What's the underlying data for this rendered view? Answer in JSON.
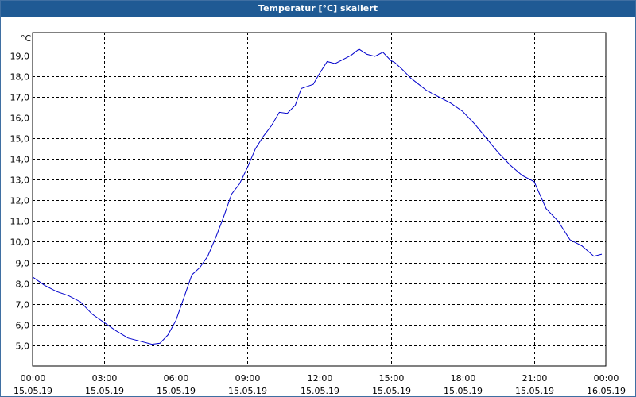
{
  "window": {
    "title": "Temperatur [°C] skaliert"
  },
  "chart_data": {
    "type": "line",
    "title": "Temperatur [°C] skaliert",
    "unit_label": "°C",
    "xlabel": "",
    "ylabel": "",
    "ylim": [
      4.0,
      20.1
    ],
    "xlim": [
      "2019-05-15T00:00",
      "2019-05-16T00:00"
    ],
    "yticks": [
      5,
      6,
      7,
      8,
      9,
      10,
      11,
      12,
      13,
      14,
      15,
      16,
      17,
      18,
      19
    ],
    "ytick_labels": [
      "5,0",
      "6,0",
      "7,0",
      "8,0",
      "9,0",
      "10,0",
      "11,0",
      "12,0",
      "13,0",
      "14,0",
      "15,0",
      "16,0",
      "17,0",
      "18,0",
      "19,0"
    ],
    "xticks": [
      {
        "time": "00:00",
        "date": "15.05.19",
        "x": "2019-05-15T00:00"
      },
      {
        "time": "03:00",
        "date": "15.05.19",
        "x": "2019-05-15T03:00"
      },
      {
        "time": "06:00",
        "date": "15.05.19",
        "x": "2019-05-15T06:00"
      },
      {
        "time": "09:00",
        "date": "15.05.19",
        "x": "2019-05-15T09:00"
      },
      {
        "time": "12:00",
        "date": "15.05.19",
        "x": "2019-05-15T12:00"
      },
      {
        "time": "15:00",
        "date": "15.05.19",
        "x": "2019-05-15T15:00"
      },
      {
        "time": "18:00",
        "date": "15.05.19",
        "x": "2019-05-15T18:00"
      },
      {
        "time": "21:00",
        "date": "15.05.19",
        "x": "2019-05-15T21:00"
      },
      {
        "time": "00:00",
        "date": "16.05.19",
        "x": "2019-05-16T00:00"
      }
    ],
    "grid": true,
    "series": [
      {
        "color": "#0000cc",
        "x": [
          "2019-05-15T00:00",
          "2019-05-15T00:30",
          "2019-05-15T01:00",
          "2019-05-15T01:30",
          "2019-05-15T02:00",
          "2019-05-15T02:30",
          "2019-05-15T03:00",
          "2019-05-15T03:30",
          "2019-05-15T04:00",
          "2019-05-15T04:30",
          "2019-05-15T05:00",
          "2019-05-15T05:20",
          "2019-05-15T05:40",
          "2019-05-15T06:00",
          "2019-05-15T06:20",
          "2019-05-15T06:40",
          "2019-05-15T07:00",
          "2019-05-15T07:20",
          "2019-05-15T07:40",
          "2019-05-15T08:00",
          "2019-05-15T08:20",
          "2019-05-15T08:40",
          "2019-05-15T09:00",
          "2019-05-15T09:20",
          "2019-05-15T09:40",
          "2019-05-15T10:00",
          "2019-05-15T10:20",
          "2019-05-15T10:40",
          "2019-05-15T11:00",
          "2019-05-15T11:15",
          "2019-05-15T11:30",
          "2019-05-15T11:45",
          "2019-05-15T12:00",
          "2019-05-15T12:20",
          "2019-05-15T12:40",
          "2019-05-15T13:00",
          "2019-05-15T13:20",
          "2019-05-15T13:40",
          "2019-05-15T14:00",
          "2019-05-15T14:20",
          "2019-05-15T14:40",
          "2019-05-15T15:00",
          "2019-05-15T15:10",
          "2019-05-15T15:30",
          "2019-05-15T15:50",
          "2019-05-15T16:10",
          "2019-05-15T16:30",
          "2019-05-15T17:00",
          "2019-05-15T17:30",
          "2019-05-15T18:00",
          "2019-05-15T18:30",
          "2019-05-15T19:00",
          "2019-05-15T19:30",
          "2019-05-15T20:00",
          "2019-05-15T20:30",
          "2019-05-15T21:00",
          "2019-05-15T21:30",
          "2019-05-15T22:00",
          "2019-05-15T22:30",
          "2019-05-15T23:00",
          "2019-05-15T23:30",
          "2019-05-15T23:50"
        ],
        "values": [
          8.3,
          7.9,
          7.6,
          7.4,
          7.1,
          6.5,
          6.1,
          5.7,
          5.35,
          5.2,
          5.05,
          5.1,
          5.5,
          6.2,
          7.3,
          8.4,
          8.75,
          9.3,
          10.2,
          11.2,
          12.3,
          12.8,
          13.6,
          14.5,
          15.1,
          15.6,
          16.25,
          16.2,
          16.6,
          17.4,
          17.5,
          17.6,
          18.1,
          18.7,
          18.6,
          18.8,
          19.0,
          19.3,
          19.05,
          18.95,
          19.15,
          18.75,
          18.65,
          18.3,
          17.9,
          17.6,
          17.3,
          17.0,
          16.7,
          16.3,
          15.7,
          15.0,
          14.3,
          13.7,
          13.2,
          12.9,
          11.6,
          11.0,
          10.1,
          9.8,
          9.3,
          9.4
        ]
      }
    ]
  }
}
